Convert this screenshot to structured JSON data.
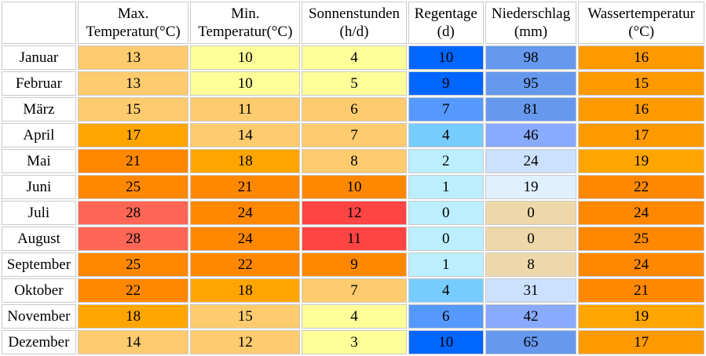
{
  "table": {
    "columns": [
      {
        "line1": "Max.",
        "line2": "Temperatur(°C)"
      },
      {
        "line1": "Min.",
        "line2": "Temperatur(°C)"
      },
      {
        "line1": "Sonnenstunden",
        "line2": "(h/d)"
      },
      {
        "line1": "Regentage",
        "line2": "(d)"
      },
      {
        "line1": "Niederschlag",
        "line2": "(mm)"
      },
      {
        "line1": "Wassertemperatur",
        "line2": "(°C)"
      }
    ],
    "rows": [
      {
        "month": "Januar",
        "values": [
          "13",
          "10",
          "4",
          "10",
          "98",
          "16"
        ],
        "colors": [
          "#fecb6e",
          "#feff99",
          "#feff99",
          "#0066ff",
          "#6699ee",
          "#ff9900"
        ]
      },
      {
        "month": "Februar",
        "values": [
          "13",
          "10",
          "5",
          "9",
          "95",
          "15"
        ],
        "colors": [
          "#fecb6e",
          "#feff99",
          "#feff99",
          "#0066ff",
          "#6699ee",
          "#ff9900"
        ]
      },
      {
        "month": "März",
        "values": [
          "15",
          "11",
          "6",
          "7",
          "81",
          "16"
        ],
        "colors": [
          "#fecb6e",
          "#fecb6e",
          "#fecb6e",
          "#5599ff",
          "#6699ee",
          "#ff9900"
        ]
      },
      {
        "month": "April",
        "values": [
          "17",
          "14",
          "7",
          "4",
          "46",
          "17"
        ],
        "colors": [
          "#ffa500",
          "#fecb6e",
          "#fecb6e",
          "#77ccff",
          "#88aaff",
          "#ff9900"
        ]
      },
      {
        "month": "Mai",
        "values": [
          "21",
          "18",
          "8",
          "2",
          "24",
          "19"
        ],
        "colors": [
          "#ff8800",
          "#ffa500",
          "#fecb6e",
          "#bbeeff",
          "#cce1ff",
          "#ffa500"
        ]
      },
      {
        "month": "Juni",
        "values": [
          "25",
          "21",
          "10",
          "1",
          "19",
          "22"
        ],
        "colors": [
          "#ff8800",
          "#ff8800",
          "#ff8800",
          "#bbeeff",
          "#dff0ff",
          "#ff8800"
        ]
      },
      {
        "month": "Juli",
        "values": [
          "28",
          "24",
          "12",
          "0",
          "0",
          "24"
        ],
        "colors": [
          "#ff6655",
          "#ff8800",
          "#ff4444",
          "#bbeeff",
          "#eed8aa",
          "#ff8800"
        ]
      },
      {
        "month": "August",
        "values": [
          "28",
          "24",
          "11",
          "0",
          "0",
          "25"
        ],
        "colors": [
          "#ff6655",
          "#ff8800",
          "#ff4444",
          "#bbeeff",
          "#eed8aa",
          "#ff8800"
        ]
      },
      {
        "month": "September",
        "values": [
          "25",
          "22",
          "9",
          "1",
          "8",
          "24"
        ],
        "colors": [
          "#ff8800",
          "#ff8800",
          "#ff8800",
          "#bbeeff",
          "#eed8aa",
          "#ff8800"
        ]
      },
      {
        "month": "Oktober",
        "values": [
          "22",
          "18",
          "7",
          "4",
          "31",
          "21"
        ],
        "colors": [
          "#ff8800",
          "#ffa500",
          "#fecb6e",
          "#77ccff",
          "#cce1ff",
          "#ff8800"
        ]
      },
      {
        "month": "November",
        "values": [
          "18",
          "15",
          "4",
          "6",
          "42",
          "19"
        ],
        "colors": [
          "#ffa500",
          "#fecb6e",
          "#feff99",
          "#5599ff",
          "#88aaff",
          "#ffa500"
        ]
      },
      {
        "month": "Dezember",
        "values": [
          "14",
          "12",
          "3",
          "10",
          "65",
          "17"
        ],
        "colors": [
          "#fecb6e",
          "#fecb6e",
          "#feff99",
          "#0066ff",
          "#6699ee",
          "#ff9900"
        ]
      }
    ]
  }
}
